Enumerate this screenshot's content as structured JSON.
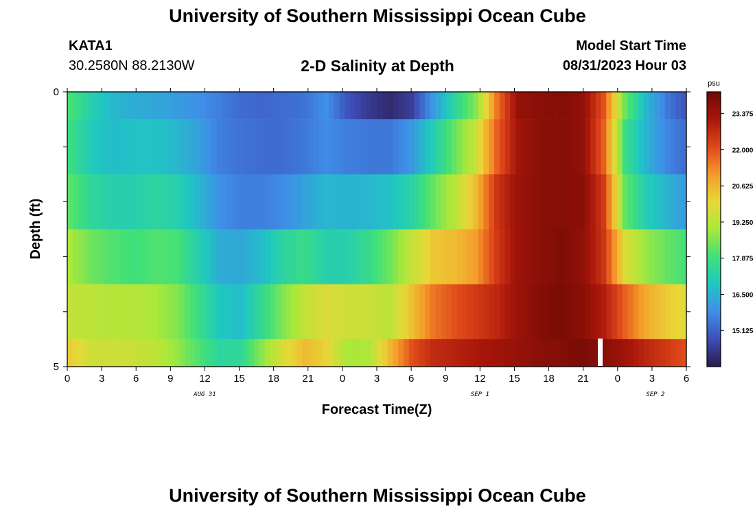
{
  "header": {
    "title": "University of Southern Mississippi Ocean Cube",
    "station_id": "KATA1",
    "station_coords": "30.2580N  88.2130W",
    "plot_title": "2-D Salinity at Depth",
    "model_start_label": "Model Start Time",
    "model_start_value": "08/31/2023 Hour 03"
  },
  "footer": {
    "title": "University of Southern Mississippi Ocean Cube"
  },
  "chart_data": {
    "type": "heatmap",
    "title": "2-D Salinity at Depth",
    "xlabel": "Forecast Time(Z)",
    "ylabel": "Depth (ft)",
    "x_tick_labels": [
      "0",
      "3",
      "6",
      "9",
      "12",
      "15",
      "18",
      "21",
      "0",
      "3",
      "6",
      "9",
      "12",
      "15",
      "18",
      "21",
      "0",
      "3",
      "6"
    ],
    "x_date_labels": [
      "AUG 31",
      "SEP 1",
      "SEP 2"
    ],
    "y_tick_labels": [
      "0",
      "5"
    ],
    "ylim": [
      0,
      5
    ],
    "colorbar": {
      "unit": "psu",
      "tick_labels": [
        "23.375",
        "22.000",
        "20.625",
        "19.250",
        "17.875",
        "16.500",
        "15.125"
      ],
      "min": 13.75,
      "max": 24.2,
      "colors": [
        "#2b1a4a",
        "#3e4db8",
        "#3f8ee8",
        "#1fc7c2",
        "#3fe07a",
        "#a8e83a",
        "#e8d838",
        "#f59a2a",
        "#e0481a",
        "#a8160a",
        "#6e0a05"
      ]
    },
    "rows": [
      {
        "depth_label": "0-0.5",
        "values": [
          18.0,
          17.2,
          16.6,
          16.4,
          16.3,
          16.1,
          15.9,
          15.6,
          15.3,
          15.2,
          15.3,
          15.4,
          15.9,
          14.9,
          14.4,
          14.1,
          14.5,
          16.0,
          17.4,
          18.6,
          21.5,
          23.5,
          23.7,
          23.8,
          23.6,
          22.0,
          18.4,
          16.6,
          15.5,
          14.8
        ]
      },
      {
        "depth_label": "0.5-1.5",
        "values": [
          17.8,
          17.0,
          16.7,
          16.8,
          16.8,
          16.6,
          16.2,
          15.6,
          15.4,
          15.3,
          15.3,
          15.5,
          15.8,
          15.6,
          15.5,
          15.5,
          16.0,
          17.1,
          18.3,
          19.5,
          21.8,
          23.3,
          23.7,
          23.8,
          23.6,
          21.8,
          17.8,
          16.5,
          15.7,
          15.2
        ]
      },
      {
        "depth_label": "1.5-2.5",
        "values": [
          18.2,
          17.5,
          17.2,
          17.2,
          17.4,
          17.2,
          16.6,
          15.9,
          15.6,
          15.6,
          15.8,
          16.2,
          16.6,
          16.5,
          16.6,
          16.8,
          17.3,
          18.3,
          19.2,
          20.5,
          22.5,
          23.4,
          23.7,
          23.8,
          23.7,
          22.4,
          18.3,
          17.1,
          16.5,
          16.0
        ]
      },
      {
        "depth_label": "2.5-3.5",
        "values": [
          19.0,
          18.4,
          18.1,
          17.9,
          18.1,
          18.0,
          17.2,
          16.4,
          16.3,
          16.7,
          17.4,
          17.7,
          17.2,
          17.2,
          17.7,
          18.4,
          19.4,
          20.3,
          20.5,
          21.0,
          22.4,
          23.4,
          23.7,
          23.9,
          23.6,
          22.5,
          19.8,
          18.8,
          18.3,
          17.9
        ]
      },
      {
        "depth_label": "3.5-4.5",
        "values": [
          19.4,
          19.3,
          19.2,
          19.2,
          19.0,
          18.6,
          17.8,
          16.9,
          16.7,
          17.6,
          18.6,
          19.4,
          19.8,
          19.6,
          19.5,
          19.3,
          20.4,
          21.5,
          22.0,
          22.4,
          22.8,
          23.4,
          23.8,
          24.0,
          23.7,
          23.0,
          21.8,
          20.8,
          20.2,
          19.8
        ]
      },
      {
        "depth_label": "4.5-5",
        "values": [
          20.2,
          19.6,
          19.6,
          19.5,
          19.3,
          18.8,
          18.1,
          17.4,
          17.5,
          18.7,
          19.8,
          20.5,
          20.1,
          19.0,
          19.1,
          20.6,
          22.0,
          22.7,
          22.9,
          23.1,
          23.3,
          23.5,
          23.7,
          23.8,
          24.0,
          23.7,
          23.3,
          22.8,
          22.4,
          22.0
        ]
      }
    ],
    "grid": false
  }
}
